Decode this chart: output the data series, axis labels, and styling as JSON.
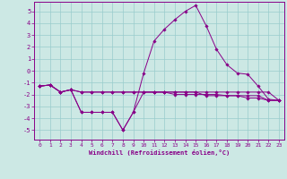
{
  "xlabel": "Windchill (Refroidissement éolien,°C)",
  "xlim": [
    -0.5,
    23.5
  ],
  "ylim": [
    -5.8,
    5.8
  ],
  "yticks": [
    -5,
    -4,
    -3,
    -2,
    -1,
    0,
    1,
    2,
    3,
    4,
    5
  ],
  "xticks": [
    0,
    1,
    2,
    3,
    4,
    5,
    6,
    7,
    8,
    9,
    10,
    11,
    12,
    13,
    14,
    15,
    16,
    17,
    18,
    19,
    20,
    21,
    22,
    23
  ],
  "bg_color": "#cce8e4",
  "line_color": "#880088",
  "grid_color": "#99cccc",
  "lines": [
    {
      "x": [
        0,
        1,
        2,
        3,
        4,
        5,
        6,
        7,
        8,
        9,
        10,
        11,
        12,
        13,
        14,
        15,
        16,
        17,
        18,
        19,
        20,
        21,
        22,
        23
      ],
      "y": [
        -1.3,
        -1.2,
        -1.8,
        -1.6,
        -3.5,
        -3.5,
        -3.5,
        -3.5,
        -5.0,
        -3.5,
        -0.2,
        2.5,
        3.5,
        4.3,
        5.0,
        5.5,
        3.8,
        1.8,
        0.5,
        -0.2,
        -0.3,
        -1.3,
        -2.4,
        -2.5
      ]
    },
    {
      "x": [
        0,
        1,
        2,
        3,
        4,
        5,
        6,
        7,
        8,
        9,
        10,
        11,
        12,
        13,
        14,
        15,
        16,
        17,
        18,
        19,
        20,
        21,
        22,
        23
      ],
      "y": [
        -1.3,
        -1.2,
        -1.8,
        -1.6,
        -3.5,
        -3.5,
        -3.5,
        -3.5,
        -5.0,
        -3.5,
        -1.8,
        -1.8,
        -1.8,
        -1.8,
        -1.8,
        -1.8,
        -2.1,
        -2.1,
        -2.1,
        -2.1,
        -2.1,
        -2.1,
        -2.5,
        -2.5
      ]
    },
    {
      "x": [
        0,
        1,
        2,
        3,
        4,
        5,
        6,
        7,
        8,
        9,
        10,
        11,
        12,
        13,
        14,
        15,
        16,
        17,
        18,
        19,
        20,
        21,
        22,
        23
      ],
      "y": [
        -1.3,
        -1.2,
        -1.8,
        -1.6,
        -1.8,
        -1.8,
        -1.8,
        -1.8,
        -1.8,
        -1.8,
        -1.8,
        -1.8,
        -1.8,
        -1.8,
        -1.8,
        -1.8,
        -1.8,
        -1.8,
        -1.8,
        -1.8,
        -1.8,
        -1.8,
        -1.8,
        -2.5
      ]
    },
    {
      "x": [
        0,
        1,
        2,
        3,
        4,
        5,
        6,
        7,
        8,
        9,
        10,
        11,
        12,
        13,
        14,
        15,
        16,
        17,
        18,
        19,
        20,
        21,
        22,
        23
      ],
      "y": [
        -1.3,
        -1.2,
        -1.8,
        -1.6,
        -1.8,
        -1.8,
        -1.8,
        -1.8,
        -1.8,
        -1.8,
        -1.8,
        -1.8,
        -1.8,
        -2.0,
        -2.0,
        -2.0,
        -2.0,
        -2.0,
        -2.1,
        -2.1,
        -2.3,
        -2.3,
        -2.5,
        -2.5
      ]
    }
  ]
}
